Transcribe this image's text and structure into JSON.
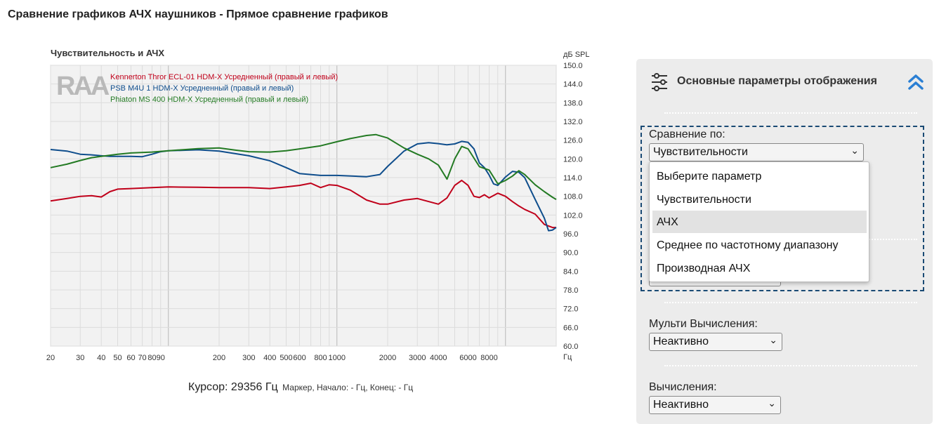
{
  "page_title": "Сравнение графиков АЧХ наушников - Прямое сравнение графиков",
  "cursor": {
    "label": "Курсор:",
    "value": "29356 Гц",
    "marker_text": "Маркер, Начало: - Гц, Конец: - Гц"
  },
  "panel": {
    "title": "Основные параметры отображения",
    "compare_label": "Сравнение по:",
    "compare_value": "Чувствительности",
    "compare_options": [
      "Выберите параметр",
      "Чувствительности",
      "АЧХ",
      "Среднее по частотному диапазону",
      "Производная АЧХ"
    ],
    "compare_highlighted": 2,
    "multi_label": "Мульти Вычисления:",
    "multi_value": "Неактивно",
    "calc_label": "Вычисления:",
    "calc_value": "Неактивно"
  },
  "colors": {
    "red": "#c0001a",
    "blue": "#0e4d8c",
    "green": "#237a23",
    "panel_bg": "#ececec",
    "accent": "#2a7fd4"
  },
  "chart_data": {
    "type": "line",
    "title": "Чувствительность и АЧХ",
    "ylabel": "дБ SPL",
    "xlabel": "Гц",
    "xscale": "log",
    "xlim": [
      20,
      20000
    ],
    "ylim": [
      60,
      150
    ],
    "x_ticks": [
      20,
      30,
      40,
      50,
      60,
      70,
      80,
      90,
      200,
      300,
      400,
      500,
      600,
      800,
      1000,
      2000,
      3000,
      4000,
      6000,
      8000
    ],
    "x_tick_labels": [
      "20",
      "30",
      "40",
      "50",
      "60",
      "70",
      "80",
      "90",
      "200",
      "300",
      "400",
      "500",
      "600",
      "800",
      "1000",
      "2000",
      "3000",
      "4000",
      "6000",
      "8000"
    ],
    "y_ticks": [
      60,
      66,
      72,
      78,
      84,
      90,
      96,
      102,
      108,
      114,
      120,
      126,
      132,
      138,
      144,
      150
    ],
    "y_tick_labels": [
      "60.0",
      "66.0",
      "72.0",
      "78.0",
      "84.0",
      "90.0",
      "96.0",
      "102.0",
      "108.0",
      "114.0",
      "120.0",
      "126.0",
      "132.0",
      "138.0",
      "144.0",
      "150.0"
    ],
    "grid": true,
    "legend_position": "top-left",
    "series": [
      {
        "name": "Kennerton Thror ECL-01 HDM-X Усредненный (правый и левый)",
        "color": "#c0001a",
        "points": [
          [
            20,
            106.5
          ],
          [
            25,
            107.3
          ],
          [
            30,
            108
          ],
          [
            35,
            108.2
          ],
          [
            40,
            107.8
          ],
          [
            45,
            109.5
          ],
          [
            50,
            110.3
          ],
          [
            60,
            110.5
          ],
          [
            80,
            110.8
          ],
          [
            100,
            111
          ],
          [
            150,
            110.9
          ],
          [
            200,
            110.8
          ],
          [
            300,
            110.8
          ],
          [
            400,
            110.5
          ],
          [
            500,
            111
          ],
          [
            600,
            111.5
          ],
          [
            700,
            112.2
          ],
          [
            800,
            110.8
          ],
          [
            900,
            111.7
          ],
          [
            1000,
            111.5
          ],
          [
            1200,
            110
          ],
          [
            1500,
            106.8
          ],
          [
            1800,
            105.5
          ],
          [
            2000,
            105.5
          ],
          [
            2500,
            106.8
          ],
          [
            3000,
            107.3
          ],
          [
            4000,
            105.5
          ],
          [
            4500,
            107.5
          ],
          [
            5000,
            111.5
          ],
          [
            5500,
            113.1
          ],
          [
            6000,
            111.5
          ],
          [
            6500,
            108
          ],
          [
            7000,
            107.6
          ],
          [
            7500,
            108.5
          ],
          [
            8000,
            107.5
          ],
          [
            9000,
            109
          ],
          [
            10000,
            108
          ],
          [
            11000,
            106.3
          ],
          [
            12000,
            104.9
          ],
          [
            13000,
            103.8
          ],
          [
            15000,
            102.3
          ],
          [
            17000,
            99
          ],
          [
            19000,
            98
          ],
          [
            20000,
            98
          ]
        ]
      },
      {
        "name": "PSB M4U 1 HDM-X Усредненный (правый и левый)",
        "color": "#0e4d8c",
        "points": [
          [
            20,
            123
          ],
          [
            25,
            122.5
          ],
          [
            30,
            121.5
          ],
          [
            35,
            121.3
          ],
          [
            40,
            121
          ],
          [
            45,
            120.8
          ],
          [
            50,
            120.8
          ],
          [
            60,
            120.8
          ],
          [
            70,
            120.7
          ],
          [
            80,
            121.5
          ],
          [
            90,
            122.3
          ],
          [
            100,
            122.6
          ],
          [
            150,
            122.9
          ],
          [
            200,
            122.5
          ],
          [
            300,
            121
          ],
          [
            400,
            119.4
          ],
          [
            500,
            117.2
          ],
          [
            600,
            115.3
          ],
          [
            800,
            114.7
          ],
          [
            1000,
            114.7
          ],
          [
            1500,
            114.3
          ],
          [
            1800,
            115
          ],
          [
            2000,
            117.6
          ],
          [
            2500,
            122.5
          ],
          [
            3000,
            124.8
          ],
          [
            3500,
            125.2
          ],
          [
            4000,
            124.9
          ],
          [
            4500,
            124.5
          ],
          [
            5000,
            124.8
          ],
          [
            5500,
            125.6
          ],
          [
            6000,
            125.3
          ],
          [
            6500,
            123.2
          ],
          [
            7000,
            118.7
          ],
          [
            7500,
            117.2
          ],
          [
            8000,
            114.8
          ],
          [
            8500,
            112
          ],
          [
            9000,
            111.5
          ],
          [
            10000,
            114.2
          ],
          [
            11000,
            116
          ],
          [
            12000,
            115.7
          ],
          [
            13000,
            114
          ],
          [
            15000,
            107
          ],
          [
            17000,
            101
          ],
          [
            18000,
            97
          ],
          [
            19000,
            97.2
          ],
          [
            20000,
            98
          ]
        ]
      },
      {
        "name": "Phiaton MS 400 HDM-X Усредненный (правый и левый)",
        "color": "#237a23",
        "points": [
          [
            20,
            117.2
          ],
          [
            25,
            118.3
          ],
          [
            30,
            119.5
          ],
          [
            35,
            120.4
          ],
          [
            40,
            120.8
          ],
          [
            50,
            121.5
          ],
          [
            60,
            121.9
          ],
          [
            80,
            122.2
          ],
          [
            100,
            122.6
          ],
          [
            150,
            123.3
          ],
          [
            200,
            123.5
          ],
          [
            250,
            122.8
          ],
          [
            300,
            122.3
          ],
          [
            400,
            122.2
          ],
          [
            500,
            122.6
          ],
          [
            600,
            123.2
          ],
          [
            800,
            124.2
          ],
          [
            1000,
            125.5
          ],
          [
            1200,
            126.5
          ],
          [
            1500,
            127.5
          ],
          [
            1700,
            127.8
          ],
          [
            2000,
            126.7
          ],
          [
            2500,
            123.5
          ],
          [
            3000,
            121.5
          ],
          [
            3500,
            120
          ],
          [
            4000,
            118
          ],
          [
            4500,
            113.5
          ],
          [
            5000,
            120
          ],
          [
            5500,
            124
          ],
          [
            6000,
            123.2
          ],
          [
            7000,
            117.5
          ],
          [
            8000,
            116.4
          ],
          [
            9000,
            112
          ],
          [
            10000,
            113.1
          ],
          [
            11000,
            114.5
          ],
          [
            12000,
            116.2
          ],
          [
            13000,
            115
          ],
          [
            15000,
            111.7
          ],
          [
            17000,
            109.5
          ],
          [
            19000,
            107.7
          ],
          [
            20000,
            107
          ]
        ]
      }
    ]
  }
}
